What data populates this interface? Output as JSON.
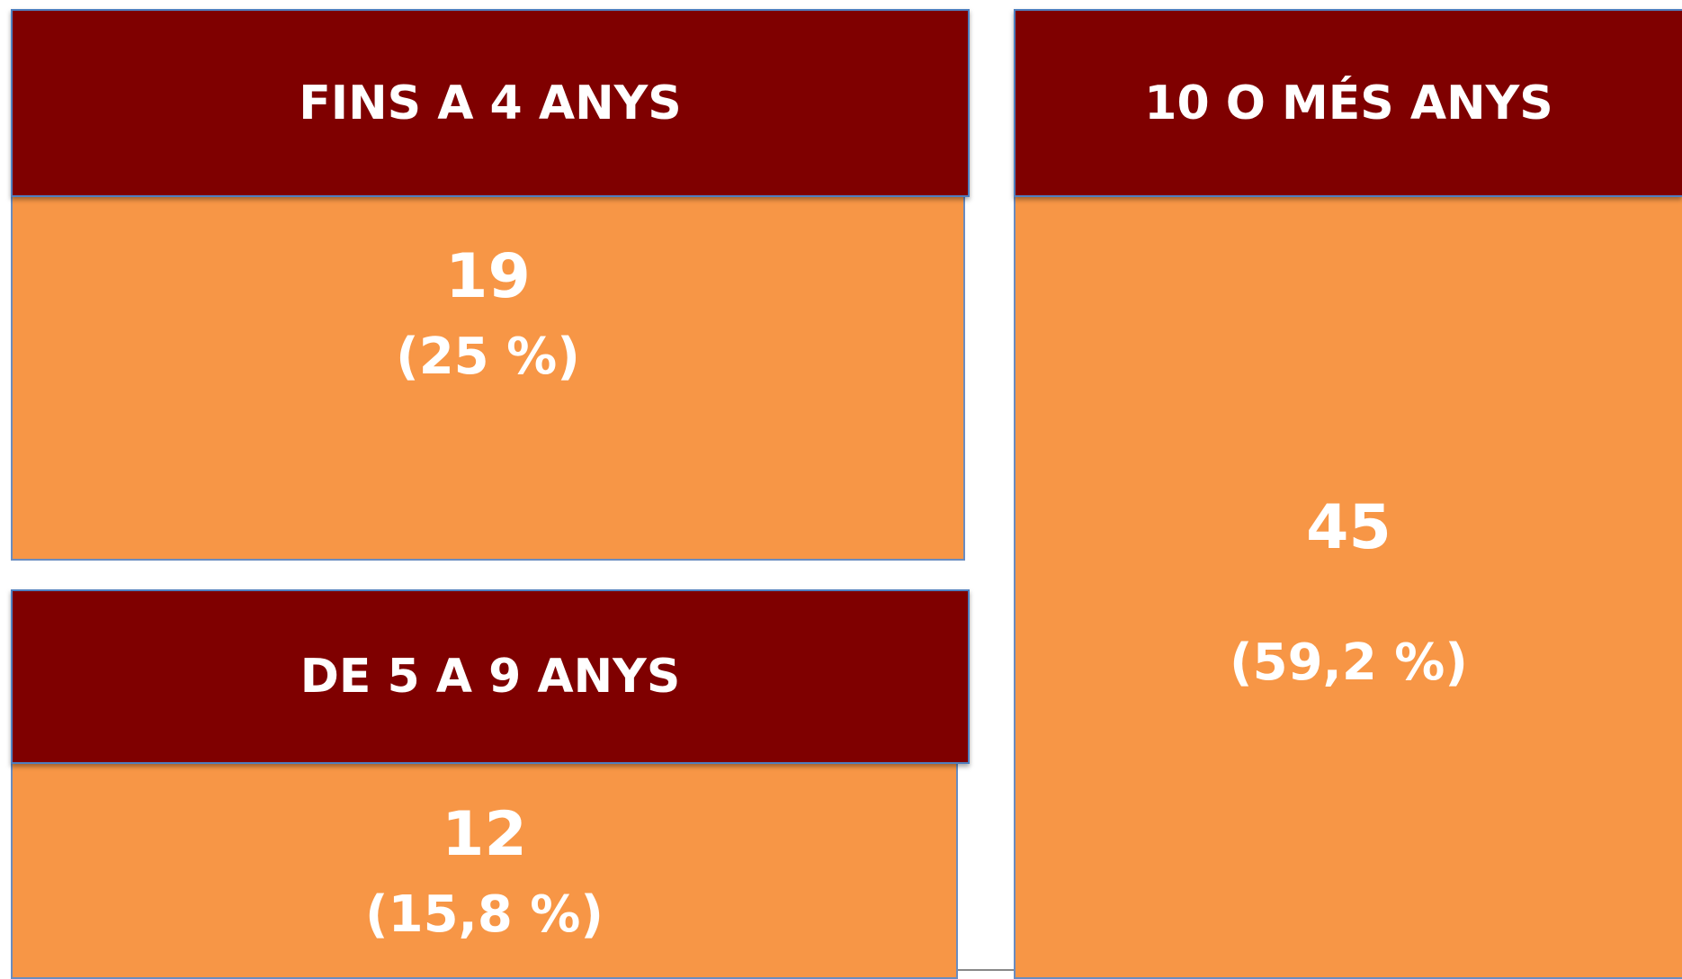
{
  "boxes": [
    {
      "title": "FINS A 4 ANYS",
      "count": 19,
      "percent": "(25 %)"
    },
    {
      "title": "DE 5 A 9 ANYS",
      "count": 12,
      "percent": "(15,8 %)"
    },
    {
      "title": "10 O MÉS ANYS",
      "count": 45,
      "percent": "(59,2 %)"
    }
  ]
}
